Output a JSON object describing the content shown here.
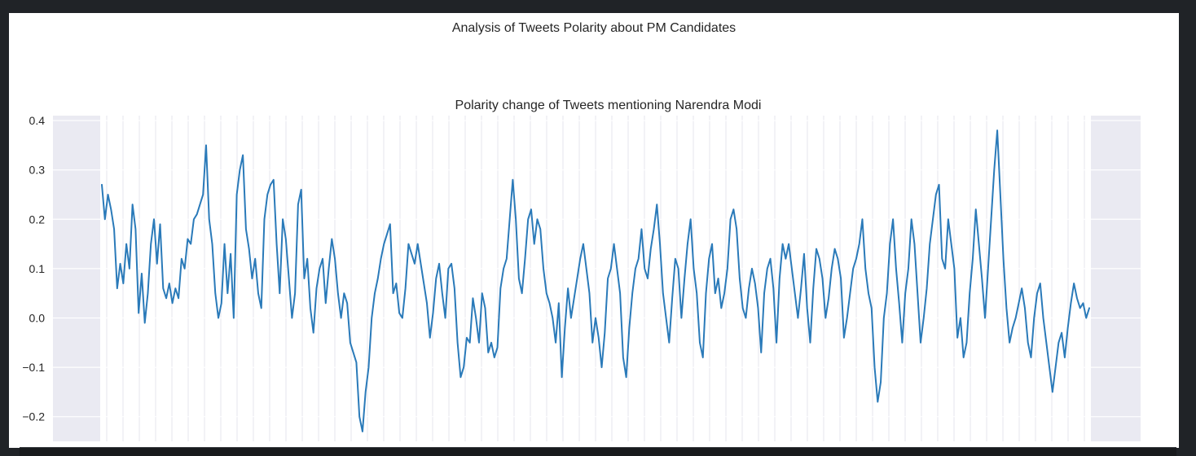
{
  "figure": {
    "suptitle": "Analysis of Tweets Polarity about PM Candidates"
  },
  "chart_data": {
    "type": "line",
    "title": "Polarity change of Tweets mentioning Narendra Modi",
    "xlabel": "",
    "ylabel": "",
    "ylim": [
      -0.25,
      0.41
    ],
    "yticks": [
      -0.2,
      -0.1,
      0.0,
      0.1,
      0.2,
      0.3,
      0.4
    ],
    "ytick_labels": [
      "−0.2",
      "−0.1",
      "0.0",
      "0.1",
      "0.2",
      "0.3",
      "0.4"
    ],
    "grid": true,
    "series": [
      {
        "color": "#2a7ab9",
        "values": [
          0.27,
          0.2,
          0.25,
          0.22,
          0.18,
          0.06,
          0.11,
          0.07,
          0.15,
          0.1,
          0.23,
          0.18,
          0.01,
          0.09,
          -0.01,
          0.05,
          0.15,
          0.2,
          0.11,
          0.19,
          0.06,
          0.04,
          0.07,
          0.03,
          0.06,
          0.04,
          0.12,
          0.1,
          0.16,
          0.15,
          0.2,
          0.21,
          0.23,
          0.25,
          0.35,
          0.2,
          0.15,
          0.05,
          0.0,
          0.03,
          0.15,
          0.05,
          0.13,
          0.0,
          0.25,
          0.3,
          0.33,
          0.18,
          0.14,
          0.08,
          0.12,
          0.05,
          0.02,
          0.2,
          0.25,
          0.27,
          0.28,
          0.15,
          0.05,
          0.2,
          0.16,
          0.08,
          0.0,
          0.05,
          0.23,
          0.26,
          0.08,
          0.12,
          0.02,
          -0.03,
          0.06,
          0.1,
          0.12,
          0.03,
          0.1,
          0.16,
          0.12,
          0.05,
          0.0,
          0.05,
          0.03,
          -0.05,
          -0.07,
          -0.09,
          -0.2,
          -0.23,
          -0.15,
          -0.1,
          0.0,
          0.05,
          0.08,
          0.12,
          0.15,
          0.17,
          0.19,
          0.05,
          0.07,
          0.01,
          0.0,
          0.06,
          0.15,
          0.13,
          0.11,
          0.15,
          0.11,
          0.07,
          0.03,
          -0.04,
          0.01,
          0.08,
          0.11,
          0.05,
          0.0,
          0.1,
          0.11,
          0.06,
          -0.05,
          -0.12,
          -0.1,
          -0.04,
          -0.05,
          0.04,
          0.0,
          -0.05,
          0.05,
          0.02,
          -0.07,
          -0.05,
          -0.08,
          -0.06,
          0.06,
          0.1,
          0.12,
          0.2,
          0.28,
          0.2,
          0.08,
          0.05,
          0.12,
          0.2,
          0.22,
          0.15,
          0.2,
          0.18,
          0.1,
          0.05,
          0.03,
          0.0,
          -0.05,
          0.03,
          -0.12,
          -0.02,
          0.06,
          0.0,
          0.04,
          0.08,
          0.12,
          0.15,
          0.1,
          0.05,
          -0.05,
          0.0,
          -0.04,
          -0.1,
          -0.03,
          0.08,
          0.1,
          0.15,
          0.1,
          0.05,
          -0.08,
          -0.12,
          -0.02,
          0.05,
          0.1,
          0.12,
          0.18,
          0.1,
          0.08,
          0.14,
          0.18,
          0.23,
          0.15,
          0.05,
          0.0,
          -0.05,
          0.04,
          0.12,
          0.1,
          0.0,
          0.08,
          0.15,
          0.2,
          0.1,
          0.05,
          -0.05,
          -0.08,
          0.05,
          0.12,
          0.15,
          0.05,
          0.08,
          0.02,
          0.05,
          0.1,
          0.2,
          0.22,
          0.18,
          0.08,
          0.02,
          0.0,
          0.06,
          0.1,
          0.07,
          0.02,
          -0.07,
          0.05,
          0.1,
          0.12,
          0.06,
          -0.05,
          0.08,
          0.15,
          0.12,
          0.15,
          0.1,
          0.05,
          0.0,
          0.06,
          0.13,
          0.02,
          -0.05,
          0.06,
          0.14,
          0.12,
          0.08,
          0.0,
          0.04,
          0.1,
          0.14,
          0.12,
          0.08,
          -0.04,
          0.0,
          0.05,
          0.1,
          0.12,
          0.15,
          0.2,
          0.1,
          0.05,
          0.02,
          -0.1,
          -0.17,
          -0.13,
          0.0,
          0.05,
          0.15,
          0.2,
          0.1,
          0.03,
          -0.05,
          0.05,
          0.1,
          0.2,
          0.15,
          0.05,
          -0.05,
          0.0,
          0.06,
          0.15,
          0.2,
          0.25,
          0.27,
          0.12,
          0.1,
          0.2,
          0.15,
          0.1,
          -0.04,
          0.0,
          -0.08,
          -0.05,
          0.05,
          0.12,
          0.22,
          0.15,
          0.08,
          0.0,
          0.1,
          0.2,
          0.3,
          0.38,
          0.25,
          0.12,
          0.02,
          -0.05,
          -0.02,
          0.0,
          0.03,
          0.06,
          0.02,
          -0.05,
          -0.08,
          0.0,
          0.05,
          0.07,
          0.0,
          -0.05,
          -0.1,
          -0.15,
          -0.1,
          -0.05,
          -0.03,
          -0.08,
          -0.02,
          0.03,
          0.07,
          0.04,
          0.02,
          0.03,
          0.0,
          0.02
        ]
      }
    ]
  },
  "ui": {
    "background": "#202327",
    "figure_bg": "#ffffff",
    "axes_bg": "#eaeaf2",
    "grid": "#ffffff",
    "text": "#262626"
  }
}
